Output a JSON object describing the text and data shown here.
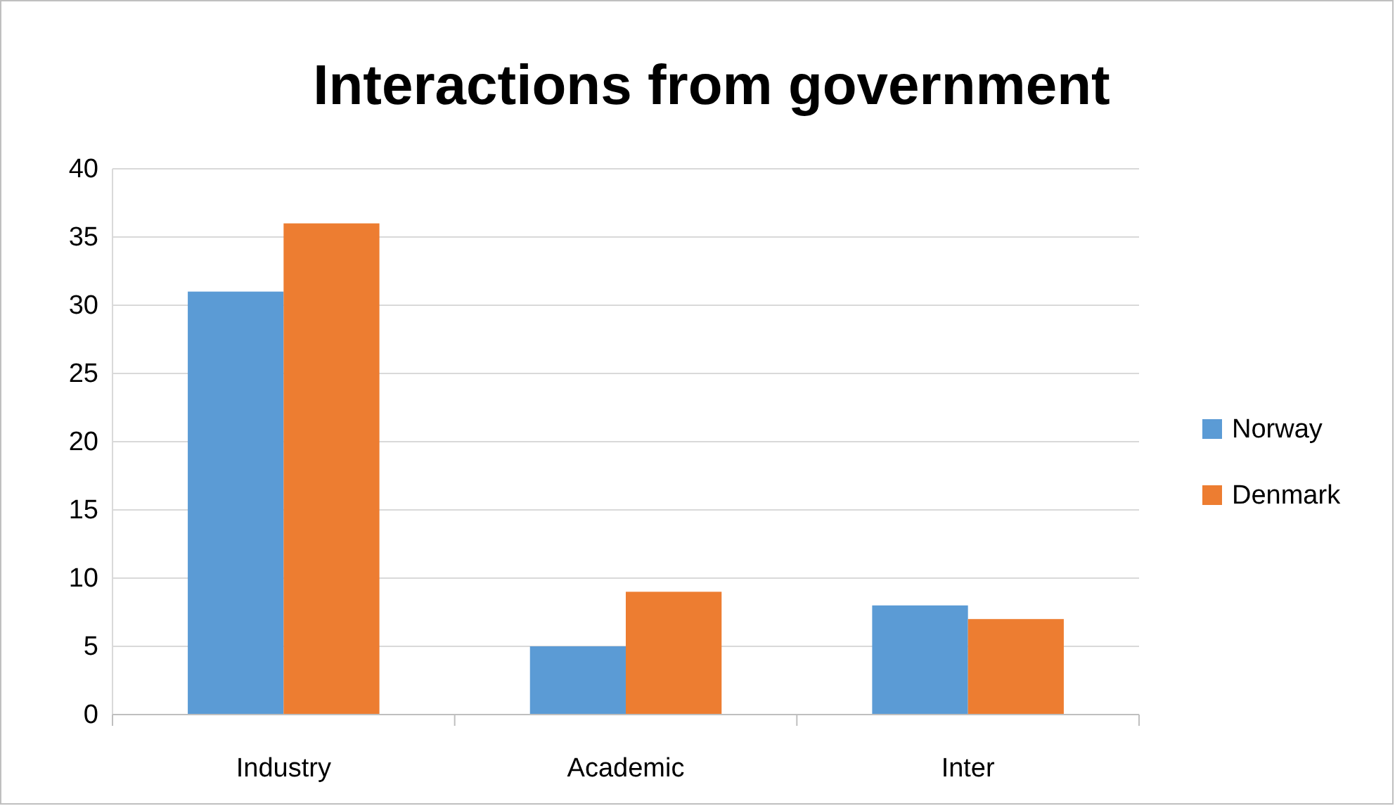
{
  "chart_data": {
    "type": "bar",
    "title": "Interactions from government",
    "categories": [
      "Industry",
      "Academic",
      "Inter"
    ],
    "series": [
      {
        "name": "Norway",
        "color": "#5b9bd5",
        "values": [
          31,
          5,
          8
        ]
      },
      {
        "name": "Denmark",
        "color": "#ed7d31",
        "values": [
          36,
          9,
          7
        ]
      }
    ],
    "ylim": [
      0,
      40
    ],
    "yticks": [
      0,
      5,
      10,
      15,
      20,
      25,
      30,
      35,
      40
    ],
    "grid": "y",
    "legend": "right"
  }
}
